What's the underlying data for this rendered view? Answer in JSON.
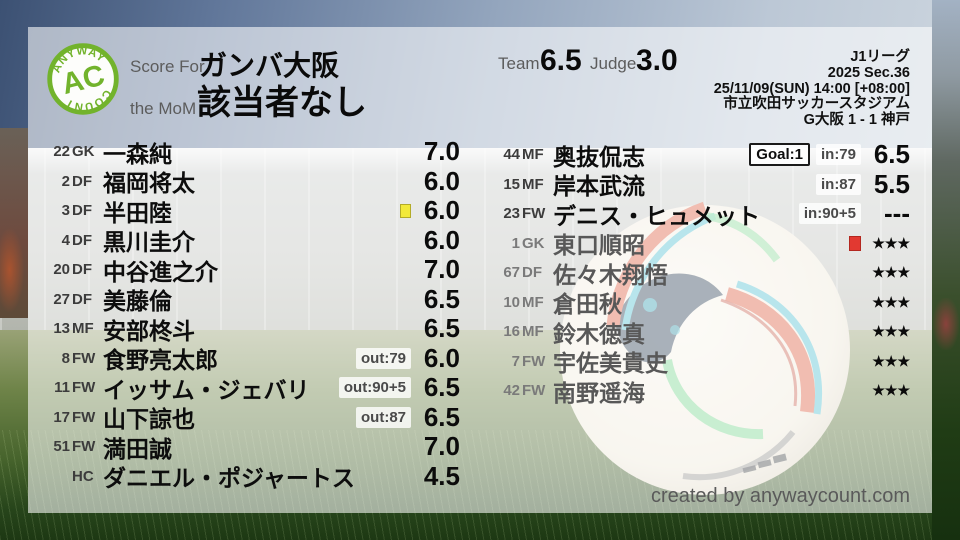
{
  "logo": {
    "top": "ANYWAY",
    "center": "AC",
    "bottom": "COUNT"
  },
  "header": {
    "score_for_label": "Score For",
    "team_name": "ガンバ大阪",
    "mom_label": "the MoM",
    "mom_value": "該当者なし",
    "team_label": "Team",
    "team_score": "6.5",
    "judge_label": "Judge",
    "judge_score": "3.0"
  },
  "match": {
    "competition": "J1リーグ",
    "season": "2025 Sec.36",
    "kickoff": "25/11/09(SUN) 14:00 [+08:00]",
    "venue": "市立吹田サッカースタジアム",
    "result": "G大阪 1 - 1 神戸"
  },
  "players": {
    "left": [
      {
        "num": "22",
        "pos": "GK",
        "name": "一森純",
        "rating": "7.0"
      },
      {
        "num": "2",
        "pos": "DF",
        "name": "福岡将太",
        "rating": "6.0"
      },
      {
        "num": "3",
        "pos": "DF",
        "name": "半田陸",
        "rating": "6.0",
        "yellow_card": true
      },
      {
        "num": "4",
        "pos": "DF",
        "name": "黒川圭介",
        "rating": "6.0"
      },
      {
        "num": "20",
        "pos": "DF",
        "name": "中谷進之介",
        "rating": "7.0"
      },
      {
        "num": "27",
        "pos": "DF",
        "name": "美藤倫",
        "rating": "6.5"
      },
      {
        "num": "13",
        "pos": "MF",
        "name": "安部柊斗",
        "rating": "6.5"
      },
      {
        "num": "8",
        "pos": "FW",
        "name": "食野亮太郎",
        "rating": "6.0",
        "sub": "out:79"
      },
      {
        "num": "11",
        "pos": "FW",
        "name": "イッサム・ジェバリ",
        "rating": "6.5",
        "sub": "out:90+5"
      },
      {
        "num": "17",
        "pos": "FW",
        "name": "山下諒也",
        "rating": "6.5",
        "sub": "out:87"
      },
      {
        "num": "51",
        "pos": "FW",
        "name": "満田誠",
        "rating": "7.0"
      },
      {
        "num": "",
        "pos": "HC",
        "name": "ダニエル・ポジャートス",
        "rating": "4.5"
      }
    ],
    "right": [
      {
        "num": "44",
        "pos": "MF",
        "name": "奥抜侃志",
        "rating": "6.5",
        "sub": "in:79",
        "goal": "Goal:1"
      },
      {
        "num": "15",
        "pos": "MF",
        "name": "岸本武流",
        "rating": "5.5",
        "sub": "in:87"
      },
      {
        "num": "23",
        "pos": "FW",
        "name": "デニス・ヒュメット",
        "rating": "---",
        "sub": "in:90+5"
      },
      {
        "num": "1",
        "pos": "GK",
        "name": "東口順昭",
        "rating": "★★★",
        "red_card": true,
        "dim": true
      },
      {
        "num": "67",
        "pos": "DF",
        "name": "佐々木翔悟",
        "rating": "★★★",
        "dim": true
      },
      {
        "num": "10",
        "pos": "MF",
        "name": "倉田秋",
        "rating": "★★★",
        "dim": true
      },
      {
        "num": "16",
        "pos": "MF",
        "name": "鈴木徳真",
        "rating": "★★★",
        "dim": true
      },
      {
        "num": "7",
        "pos": "FW",
        "name": "宇佐美貴史",
        "rating": "★★★",
        "dim": true
      },
      {
        "num": "42",
        "pos": "FW",
        "name": "南野遥海",
        "rating": "★★★",
        "dim": true
      }
    ]
  },
  "footer": {
    "credit": "created by anywaycount.com"
  },
  "colors": {
    "accent_green": "#72b32c",
    "yellow_card": "#f2e93a",
    "red_card": "#e23931",
    "overlay_white": "rgba(255,255,255,0.58)"
  }
}
